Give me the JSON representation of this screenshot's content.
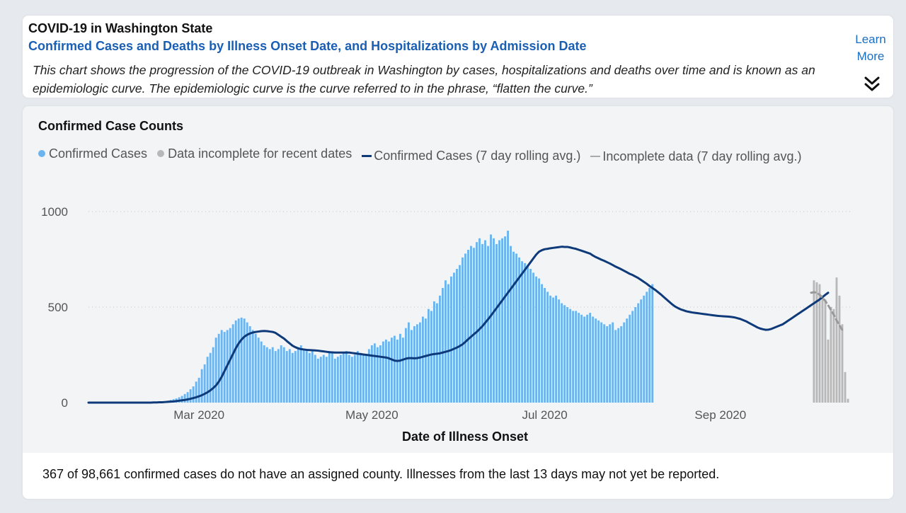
{
  "header": {
    "title": "COVID-19 in Washington State",
    "subtitle": "Confirmed Cases and Deaths by Illness Onset Date, and Hospitalizations by Admission Date",
    "description": "This chart shows the progression of the COVID-19 outbreak in Washington by cases, hospitalizations and deaths over time and is known as an epidemiologic curve. The epidemiologic curve is the curve referred to in the phrase, “flatten the curve.”",
    "learn_more_line1": "Learn",
    "learn_more_line2": "More",
    "expand_icon": "double-chevron-down-icon"
  },
  "footer": {
    "note": "367 of 98,661 confirmed cases do not have an assigned county. Illnesses from the last 13 days may not yet be reported."
  },
  "colors": {
    "confirmed_bar": "#6cb4ee",
    "incomplete_bar": "#b8b8b8",
    "rolling_avg": "#0e3a7a",
    "incomplete_avg": "#999999",
    "accent_blue": "#1a5fb4"
  },
  "chart_data": {
    "type": "bar",
    "title": "Confirmed Case Counts",
    "xlabel": "Date of Illness Onset",
    "ylabel": "",
    "ylim": [
      0,
      1000
    ],
    "yticks": [
      0,
      500,
      1000
    ],
    "grid": true,
    "legend_position": "top-left",
    "legend": [
      {
        "label": "Confirmed Cases",
        "marker": "dot",
        "color": "#6cb4ee"
      },
      {
        "label": "Data incomplete for recent dates",
        "marker": "dot",
        "color": "#b8b8b8"
      },
      {
        "label": "Confirmed Cases (7 day rolling avg.)",
        "marker": "line",
        "color": "#0e3a7a"
      },
      {
        "label": "Incomplete data (7 day rolling avg.)",
        "marker": "line",
        "color": "#aaaaaa"
      }
    ],
    "x_tick_labels": [
      {
        "label": "Mar 2020",
        "date": "2020-03-01"
      },
      {
        "label": "May 2020",
        "date": "2020-05-01"
      },
      {
        "label": "Jul 2020",
        "date": "2020-07-01"
      },
      {
        "label": "Sep 2020",
        "date": "2020-09-01"
      }
    ],
    "series": [
      {
        "name": "Confirmed Cases",
        "start_date": "2020-02-12",
        "values": [
          1,
          2,
          2,
          3,
          4,
          5,
          7,
          10,
          14,
          18,
          22,
          28,
          35,
          45,
          55,
          70,
          85,
          110,
          130,
          175,
          200,
          240,
          260,
          290,
          340,
          360,
          380,
          370,
          380,
          390,
          410,
          430,
          440,
          445,
          440,
          420,
          400,
          380,
          360,
          340,
          320,
          300,
          290,
          280,
          290,
          270,
          280,
          300,
          290,
          270,
          280,
          260,
          270,
          290,
          300,
          280,
          270,
          260,
          270,
          250,
          230,
          240,
          250,
          240,
          270,
          260,
          230,
          240,
          250,
          260,
          270,
          250,
          240,
          250,
          270,
          260,
          250,
          250,
          280,
          300,
          310,
          290,
          300,
          320,
          330,
          320,
          340,
          350,
          330,
          360,
          340,
          390,
          420,
          380,
          400,
          410,
          420,
          450,
          440,
          490,
          480,
          530,
          520,
          560,
          600,
          640,
          620,
          660,
          680,
          700,
          720,
          760,
          780,
          800,
          820,
          810,
          840,
          860,
          830,
          850,
          820,
          880,
          860,
          830,
          850,
          860,
          870,
          900,
          820,
          790,
          780,
          760,
          740,
          730,
          720,
          700,
          680,
          660,
          650,
          620,
          600,
          580,
          560,
          550,
          560,
          540,
          520,
          510,
          500,
          490,
          480,
          480,
          470,
          460,
          450,
          460,
          470,
          450,
          440,
          430,
          420,
          410,
          400,
          410,
          420,
          380,
          390,
          400,
          420,
          440,
          460,
          480,
          500,
          520,
          540,
          560,
          580,
          600,
          620
        ],
        "color": "#6cb4ee"
      },
      {
        "name": "Data incomplete for recent dates",
        "start_date": "2020-10-04",
        "values": [
          640,
          630,
          620,
          560,
          540,
          330,
          500,
          490,
          655,
          560,
          410,
          160,
          20
        ],
        "color": "#b8b8b8"
      },
      {
        "name": "Confirmed Cases (7 day rolling avg.)",
        "start_date": "2020-01-22",
        "values": [
          0,
          0,
          0,
          0,
          0,
          0,
          0,
          0,
          0,
          0,
          0,
          0,
          0,
          0,
          0,
          0,
          0,
          0,
          0,
          0,
          0,
          0,
          0,
          1,
          1,
          2,
          2,
          3,
          4,
          5,
          6,
          8,
          10,
          12,
          14,
          17,
          20,
          24,
          28,
          33,
          39,
          46,
          54,
          64,
          76,
          90,
          110,
          135,
          165,
          195,
          225,
          255,
          285,
          310,
          330,
          345,
          355,
          362,
          367,
          370,
          372,
          374,
          375,
          374,
          372,
          370,
          365,
          355,
          345,
          335,
          322,
          310,
          298,
          290,
          284,
          280,
          278,
          276,
          275,
          274,
          273,
          272,
          270,
          268,
          266,
          264,
          263,
          262,
          262,
          262,
          262,
          262,
          262,
          260,
          258,
          256,
          254,
          252,
          250,
          248,
          246,
          244,
          242,
          240,
          238,
          236,
          232,
          226,
          220,
          218,
          220,
          225,
          230,
          233,
          233,
          232,
          233,
          236,
          240,
          244,
          248,
          252,
          254,
          256,
          258,
          262,
          266,
          270,
          275,
          282,
          288,
          296,
          305,
          318,
          332,
          345,
          358,
          370,
          385,
          400,
          418,
          436,
          455,
          475,
          495,
          515,
          535,
          555,
          575,
          595,
          615,
          635,
          655,
          675,
          695,
          715,
          735,
          755,
          775,
          790,
          798,
          803,
          805,
          808,
          810,
          812,
          814,
          816,
          815,
          815,
          812,
          808,
          805,
          800,
          795,
          790,
          785,
          780,
          770,
          762,
          755,
          748,
          742,
          735,
          728,
          720,
          712,
          705,
          698,
          690,
          682,
          674,
          668,
          660,
          652,
          642,
          632,
          622,
          610,
          600,
          590,
          578,
          566,
          553,
          540,
          527,
          514,
          503,
          495,
          488,
          483,
          478,
          475,
          472,
          470,
          468,
          466,
          464,
          462,
          460,
          458,
          456,
          454,
          453,
          452,
          451,
          450,
          448,
          446,
          442,
          438,
          432,
          426,
          418,
          410,
          402,
          394,
          388,
          384,
          381,
          382,
          386,
          392,
          398,
          404,
          410,
          420,
          430,
          440,
          450,
          460,
          470,
          480,
          490,
          500,
          510,
          520,
          530,
          540,
          552,
          564,
          575
        ],
        "color": "#0e3a7a"
      },
      {
        "name": "Incomplete data (7 day rolling avg.)",
        "start_date": "2020-10-03",
        "values": [
          575,
          578,
          575,
          565,
          550,
          532,
          510,
          485,
          460,
          430,
          405,
          380
        ],
        "color": "#aaaaaa"
      }
    ]
  }
}
